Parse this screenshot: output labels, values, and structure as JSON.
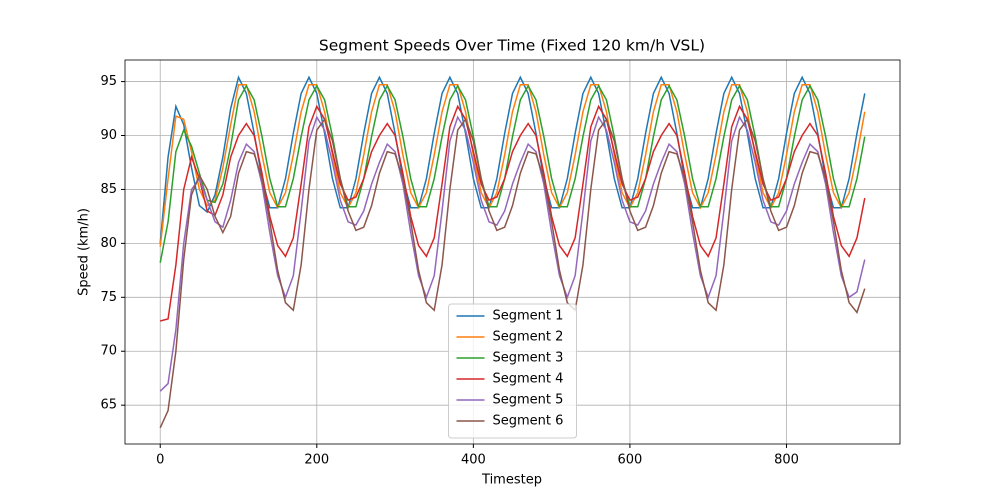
{
  "chart_data": {
    "type": "line",
    "title": "Segment Speeds Over Time (Fixed 120 km/h VSL)",
    "x_label": "Timestep",
    "y_label": "Speed (km/h)",
    "x": [
      0,
      10,
      20,
      30,
      40,
      50,
      60,
      70,
      80,
      90,
      100,
      110,
      120,
      130,
      140,
      150,
      160,
      170,
      180,
      190,
      200,
      210,
      220,
      230,
      240,
      250,
      260,
      270,
      280,
      290,
      300,
      310,
      320,
      330,
      340,
      350,
      360,
      370,
      380,
      390,
      400,
      410,
      420,
      430,
      440,
      450,
      460,
      470,
      480,
      490,
      500,
      510,
      520,
      530,
      540,
      550,
      560,
      570,
      580,
      590,
      600,
      610,
      620,
      630,
      640,
      650,
      660,
      670,
      680,
      690,
      700,
      710,
      720,
      730,
      740,
      750,
      760,
      770,
      780,
      790,
      800,
      810,
      820,
      830,
      840,
      850,
      860,
      870,
      880,
      890,
      900
    ],
    "series": [
      {
        "name": "Segment 1",
        "color": "#1f77b4",
        "values": [
          80,
          88,
          92.7,
          91,
          87,
          83.5,
          82.9,
          84.5,
          88,
          92.5,
          95.4,
          93.9,
          90.2,
          86.0,
          83.3,
          83.3,
          86.0,
          90.2,
          93.9,
          95.4,
          93.9,
          90.2,
          86.0,
          83.3,
          83.3,
          86.0,
          90.2,
          93.9,
          95.4,
          93.9,
          90.2,
          86.0,
          83.3,
          83.3,
          86.0,
          90.2,
          93.9,
          95.4,
          93.9,
          90.2,
          86.0,
          83.3,
          83.3,
          86.0,
          90.2,
          93.9,
          95.4,
          93.9,
          90.2,
          86.0,
          83.3,
          83.3,
          86.0,
          90.2,
          93.9,
          95.4,
          93.9,
          90.2,
          86.0,
          83.3,
          83.3,
          86.0,
          90.2,
          93.9,
          95.4,
          93.9,
          90.2,
          86.0,
          83.3,
          83.3,
          86.0,
          90.2,
          93.9,
          95.4,
          93.9,
          90.2,
          86.0,
          83.3,
          83.3,
          86.0,
          90.2,
          93.9,
          95.4,
          93.9,
          90.2,
          86.0,
          83.3,
          83.3,
          86.0,
          90.2,
          93.9
        ]
      },
      {
        "name": "Segment 2",
        "color": "#ff7f0e",
        "values": [
          79.7,
          86,
          91.8,
          91.5,
          88.5,
          85,
          83.5,
          84,
          87,
          91,
          94.7,
          94.7,
          92.2,
          88.2,
          84.7,
          83.3,
          84.7,
          88.2,
          92.2,
          94.7,
          94.7,
          92.2,
          88.2,
          84.7,
          83.3,
          84.7,
          88.2,
          92.2,
          94.7,
          94.7,
          92.2,
          88.2,
          84.7,
          83.3,
          84.7,
          88.2,
          92.2,
          94.7,
          94.7,
          92.2,
          88.2,
          84.7,
          83.3,
          84.7,
          88.2,
          92.2,
          94.7,
          94.7,
          92.2,
          88.2,
          84.7,
          83.3,
          84.7,
          88.2,
          92.2,
          94.7,
          94.7,
          92.2,
          88.2,
          84.7,
          83.3,
          84.7,
          88.2,
          92.2,
          94.7,
          94.7,
          92.2,
          88.2,
          84.7,
          83.3,
          84.7,
          88.2,
          92.2,
          94.7,
          94.7,
          92.2,
          88.2,
          84.7,
          83.3,
          84.7,
          88.2,
          92.2,
          94.7,
          94.7,
          92.2,
          88.2,
          84.7,
          83.3,
          84.7,
          88.2,
          92.2
        ]
      },
      {
        "name": "Segment 3",
        "color": "#2ca02c",
        "values": [
          78.2,
          82,
          88.5,
          90.5,
          89,
          86.5,
          84,
          83.8,
          85.5,
          89,
          93.3,
          94.6,
          93.3,
          89.9,
          86,
          83.4,
          83.4,
          86,
          89.9,
          93.3,
          94.6,
          93.3,
          89.9,
          86,
          83.4,
          83.4,
          86,
          89.9,
          93.3,
          94.6,
          93.3,
          89.9,
          86,
          83.4,
          83.4,
          86,
          89.9,
          93.3,
          94.6,
          93.3,
          89.9,
          86,
          83.4,
          83.4,
          86,
          89.9,
          93.3,
          94.6,
          93.3,
          89.9,
          86,
          83.4,
          83.4,
          86,
          89.9,
          93.3,
          94.6,
          93.3,
          89.9,
          86,
          83.4,
          83.4,
          86,
          89.9,
          93.3,
          94.6,
          93.3,
          89.9,
          86,
          83.4,
          83.4,
          86,
          89.9,
          93.3,
          94.6,
          93.3,
          89.9,
          86,
          83.4,
          83.4,
          86,
          89.9,
          93.3,
          94.6,
          93.3,
          89.9,
          86,
          83.4,
          83.4,
          86,
          89.9
        ]
      },
      {
        "name": "Segment 4",
        "color": "#d62728",
        "values": [
          72.8,
          73,
          78,
          85,
          88,
          86,
          83,
          82.6,
          84.5,
          88,
          90,
          91.1,
          90,
          86.5,
          82.5,
          79.8,
          78.8,
          80.5,
          85.5,
          90.8,
          92.7,
          91.5,
          88.5,
          85.5,
          84,
          84.3,
          86,
          88.5,
          90,
          91.1,
          90,
          86.5,
          82.5,
          79.8,
          78.8,
          80.5,
          85.5,
          90.8,
          92.7,
          91.5,
          88.5,
          85.5,
          84,
          84.3,
          86,
          88.5,
          90,
          91.1,
          90,
          86.5,
          82.5,
          79.8,
          78.8,
          80.5,
          85.5,
          90.8,
          92.7,
          91.5,
          88.5,
          85.5,
          84,
          84.3,
          86,
          88.5,
          90,
          91.1,
          90,
          86.5,
          82.5,
          79.8,
          78.8,
          80.5,
          85.5,
          90.8,
          92.7,
          91.5,
          88.5,
          85.5,
          84,
          84.3,
          86,
          88.5,
          90,
          91.1,
          90,
          86.5,
          82.5,
          79.8,
          78.8,
          80.5,
          84.2
        ]
      },
      {
        "name": "Segment 5",
        "color": "#9467bd",
        "values": [
          66.3,
          67,
          72,
          80,
          85,
          86,
          84,
          82,
          81.5,
          84,
          87.5,
          89.2,
          88.5,
          85.5,
          81,
          77,
          75,
          77,
          83,
          89.5,
          91.7,
          90.5,
          87.5,
          84,
          82,
          81.7,
          83,
          85.5,
          87.5,
          89.2,
          88.5,
          85.5,
          81,
          77,
          75,
          77,
          83,
          89.5,
          91.7,
          90.5,
          87.5,
          84,
          82,
          81.7,
          83,
          85.5,
          87.5,
          89.2,
          88.5,
          85.5,
          81,
          77,
          75,
          77,
          83,
          89.5,
          91.7,
          90.5,
          87.5,
          84,
          82,
          81.7,
          83,
          85.5,
          87.5,
          89.2,
          88.5,
          85.5,
          81,
          77,
          75,
          77,
          83,
          89.5,
          91.7,
          90.5,
          87.5,
          84,
          82,
          81.7,
          83,
          85.5,
          87.5,
          89.2,
          88.5,
          85.5,
          81,
          77,
          75,
          75.5,
          78.5
        ]
      },
      {
        "name": "Segment 6",
        "color": "#8c564b",
        "values": [
          62.9,
          64.5,
          70,
          78.5,
          84.5,
          86.3,
          85,
          82.5,
          81,
          82.5,
          86.5,
          88.5,
          88.3,
          86,
          82,
          77.5,
          74.5,
          73.8,
          78,
          85,
          90.5,
          91.5,
          89.5,
          86,
          83,
          81.2,
          81.5,
          83.5,
          86.5,
          88.5,
          88.3,
          86,
          82,
          77.5,
          74.5,
          73.8,
          78,
          85,
          90.5,
          91.5,
          89.5,
          86,
          83,
          81.2,
          81.5,
          83.5,
          86.5,
          88.5,
          88.3,
          86,
          82,
          77.5,
          74.5,
          73.8,
          78,
          85,
          90.5,
          91.5,
          89.5,
          86,
          83,
          81.2,
          81.5,
          83.5,
          86.5,
          88.5,
          88.3,
          86,
          82,
          77.5,
          74.5,
          73.8,
          78,
          85,
          90.5,
          91.5,
          89.5,
          86,
          83,
          81.2,
          81.5,
          83.5,
          86.5,
          88.5,
          88.3,
          86,
          82,
          77.5,
          74.5,
          73.6,
          75.8
        ]
      }
    ],
    "xlim": [
      -45,
      945
    ],
    "ylim": [
      61.4,
      97.0
    ],
    "xticks": [
      0,
      200,
      400,
      600,
      800
    ],
    "yticks": [
      65,
      70,
      75,
      80,
      85,
      90,
      95
    ],
    "grid": true,
    "legend": "lower center"
  }
}
